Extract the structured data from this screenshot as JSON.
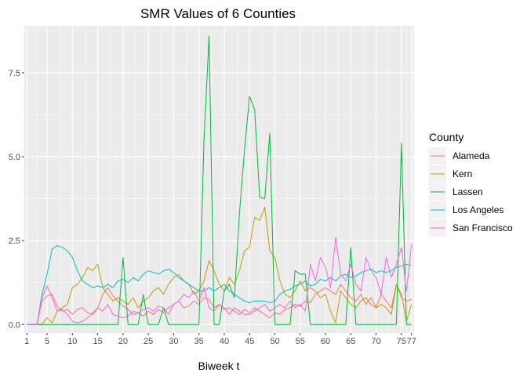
{
  "chart_data": {
    "type": "line",
    "title": "SMR Values of 6 Counties",
    "xlabel": "Biweek t",
    "ylabel": "",
    "xlim": [
      0.5,
      77.5
    ],
    "ylim": [
      -0.25,
      8.9
    ],
    "x_ticks": [
      1,
      5,
      10,
      15,
      20,
      25,
      30,
      35,
      40,
      45,
      50,
      55,
      60,
      65,
      70,
      75,
      77
    ],
    "x_tick_labels": [
      "1",
      "5",
      "10",
      "15",
      "20",
      "25",
      "30",
      "35",
      "40",
      "45",
      "50",
      "55",
      "60",
      "65",
      "70",
      "75",
      "77"
    ],
    "y_ticks": [
      0,
      2.5,
      5,
      7.5
    ],
    "y_tick_labels": [
      "0.0",
      "2.5",
      "5.0",
      "7.5"
    ],
    "grid": true,
    "legend": {
      "title": "County",
      "position": "right"
    },
    "series": [
      {
        "name": "Alameda",
        "color": "#F8766D",
        "x": [
          1,
          2,
          3,
          4,
          5,
          6,
          7,
          8,
          9,
          10,
          11,
          12,
          13,
          14,
          15,
          16,
          17,
          18,
          19,
          20,
          21,
          22,
          23,
          24,
          25,
          26,
          27,
          28,
          29,
          30,
          31,
          32,
          33,
          34,
          35,
          36,
          37,
          38,
          39,
          40,
          41,
          42,
          43,
          44,
          45,
          46,
          47,
          48,
          49,
          50,
          51,
          52,
          53,
          54,
          55,
          56,
          57,
          58,
          59,
          60,
          61,
          62,
          63,
          64,
          65,
          66,
          67,
          68,
          69,
          70,
          71,
          72,
          73,
          74,
          75,
          76,
          77
        ],
        "values": [
          0,
          0,
          0,
          0.7,
          0.85,
          0.9,
          0.55,
          0.4,
          0.45,
          0.3,
          0.45,
          0.5,
          0.35,
          0.3,
          0.5,
          0.9,
          1.1,
          0.85,
          0.7,
          0.55,
          0.45,
          0.3,
          0.35,
          0.25,
          0.4,
          0.3,
          0.45,
          0.35,
          0.5,
          0.6,
          0.7,
          0.5,
          0.55,
          0.7,
          0.6,
          0.8,
          0.75,
          0.5,
          0.6,
          0.45,
          0.5,
          0.4,
          0.3,
          0.45,
          0.35,
          0.5,
          0.4,
          0.3,
          0.2,
          0.35,
          0.3,
          0.45,
          0.5,
          0.6,
          0.55,
          0.7,
          0.65,
          0.9,
          1.0,
          1.1,
          1.0,
          0.9,
          1.2,
          1.0,
          0.8,
          0.7,
          0.9,
          0.6,
          0.8,
          0.5,
          0.9,
          0.7,
          0.5,
          1.2,
          0.8,
          0.7,
          0.75
        ]
      },
      {
        "name": "Kern",
        "color": "#B79F00",
        "x": [
          1,
          2,
          3,
          4,
          5,
          6,
          7,
          8,
          9,
          10,
          11,
          12,
          13,
          14,
          15,
          16,
          17,
          18,
          19,
          20,
          21,
          22,
          23,
          24,
          25,
          26,
          27,
          28,
          29,
          30,
          31,
          32,
          33,
          34,
          35,
          36,
          37,
          38,
          39,
          40,
          41,
          42,
          43,
          44,
          45,
          46,
          47,
          48,
          49,
          50,
          51,
          52,
          53,
          54,
          55,
          56,
          57,
          58,
          59,
          60,
          61,
          62,
          63,
          64,
          65,
          66,
          67,
          68,
          69,
          70,
          71,
          72,
          73,
          74,
          75,
          76,
          77
        ],
        "values": [
          0,
          0,
          0,
          0,
          0.2,
          0.05,
          0.4,
          0.5,
          0.6,
          1.1,
          1.2,
          1.4,
          1.7,
          1.6,
          1.8,
          1.1,
          0.9,
          0.7,
          0.8,
          0.7,
          0.6,
          0.8,
          0.5,
          0.7,
          0.8,
          1.0,
          1.1,
          0.9,
          1.2,
          1.4,
          1.5,
          1.3,
          1.2,
          0.9,
          1.0,
          1.3,
          1.9,
          1.6,
          1.2,
          1.0,
          1.4,
          1.2,
          1.6,
          2.2,
          2.3,
          3.2,
          3.1,
          3.5,
          2.2,
          2.0,
          1.3,
          0.9,
          0.8,
          1.0,
          1.3,
          1.0,
          1.1,
          1.0,
          0.8,
          0.9,
          0.4,
          0.05,
          1.0,
          0.8,
          0.6,
          0.5,
          0.7,
          0.8,
          0.6,
          0.5,
          0.6,
          0.5,
          0.3,
          1.2,
          0.9,
          0.1,
          0.6
        ]
      },
      {
        "name": "Lassen",
        "color": "#00BA38",
        "x": [
          1,
          2,
          3,
          4,
          5,
          6,
          7,
          8,
          9,
          10,
          11,
          12,
          13,
          14,
          15,
          16,
          17,
          18,
          19,
          20,
          21,
          22,
          23,
          24,
          25,
          26,
          27,
          28,
          29,
          30,
          31,
          32,
          33,
          34,
          35,
          36,
          37,
          38,
          39,
          40,
          41,
          42,
          43,
          44,
          45,
          46,
          47,
          48,
          49,
          50,
          51,
          52,
          53,
          54,
          55,
          56,
          57,
          58,
          59,
          60,
          61,
          62,
          63,
          64,
          65,
          66,
          67,
          68,
          69,
          70,
          71,
          72,
          73,
          74,
          75,
          76,
          77
        ],
        "values": [
          0,
          0,
          0,
          0,
          0,
          0,
          0,
          0,
          0,
          0,
          0,
          0,
          0,
          0,
          0,
          0,
          0,
          0,
          0,
          2.0,
          0,
          0,
          0,
          0.9,
          0,
          0,
          0,
          0.5,
          0,
          0,
          0,
          0,
          0,
          0,
          0,
          5.5,
          8.6,
          0,
          0,
          1.0,
          1.2,
          0.8,
          3.3,
          5.2,
          6.8,
          6.4,
          3.8,
          3.75,
          5.7,
          0,
          0,
          0,
          0,
          1.6,
          1.5,
          1.5,
          0,
          0,
          0,
          0,
          0,
          0,
          0,
          0,
          2.3,
          0,
          0,
          0,
          0,
          0,
          0,
          0,
          0,
          0,
          5.4,
          0,
          0
        ]
      },
      {
        "name": "Los Angeles",
        "color": "#00BFC4",
        "x": [
          1,
          2,
          3,
          4,
          5,
          6,
          7,
          8,
          9,
          10,
          11,
          12,
          13,
          14,
          15,
          16,
          17,
          18,
          19,
          20,
          21,
          22,
          23,
          24,
          25,
          26,
          27,
          28,
          29,
          30,
          31,
          32,
          33,
          34,
          35,
          36,
          37,
          38,
          39,
          40,
          41,
          42,
          43,
          44,
          45,
          46,
          47,
          48,
          49,
          50,
          51,
          52,
          53,
          54,
          55,
          56,
          57,
          58,
          59,
          60,
          61,
          62,
          63,
          64,
          65,
          66,
          67,
          68,
          69,
          70,
          71,
          72,
          73,
          74,
          75,
          76,
          77
        ],
        "values": [
          0,
          0,
          0,
          0.9,
          1.5,
          2.25,
          2.35,
          2.3,
          2.2,
          2.0,
          1.6,
          1.3,
          1.2,
          1.1,
          1.15,
          1.1,
          1.2,
          1.1,
          1.3,
          1.35,
          1.25,
          1.4,
          1.3,
          1.5,
          1.6,
          1.55,
          1.5,
          1.6,
          1.65,
          1.55,
          1.4,
          1.3,
          1.2,
          1.1,
          1.0,
          1.0,
          1.1,
          1.0,
          1.1,
          1.2,
          1.0,
          0.9,
          0.8,
          0.7,
          0.65,
          0.7,
          0.7,
          0.7,
          0.65,
          0.7,
          0.9,
          1.0,
          1.05,
          1.15,
          1.2,
          1.3,
          1.15,
          1.2,
          1.35,
          1.3,
          1.4,
          1.3,
          1.45,
          1.5,
          1.4,
          1.45,
          1.55,
          1.6,
          1.65,
          1.55,
          1.6,
          1.55,
          1.6,
          1.7,
          1.75,
          1.8,
          1.75
        ]
      },
      {
        "name": "San Francisco",
        "color": "#F564E3",
        "x": [
          1,
          2,
          3,
          4,
          5,
          6,
          7,
          8,
          9,
          10,
          11,
          12,
          13,
          14,
          15,
          16,
          17,
          18,
          19,
          20,
          21,
          22,
          23,
          24,
          25,
          26,
          27,
          28,
          29,
          30,
          31,
          32,
          33,
          34,
          35,
          36,
          37,
          38,
          39,
          40,
          41,
          42,
          43,
          44,
          45,
          46,
          47,
          48,
          49,
          50,
          51,
          52,
          53,
          54,
          55,
          56,
          57,
          58,
          59,
          60,
          61,
          62,
          63,
          64,
          65,
          66,
          67,
          68,
          69,
          70,
          71,
          72,
          73,
          74,
          75,
          76,
          77
        ],
        "values": [
          0,
          0,
          0,
          0.8,
          1.15,
          0.8,
          0.4,
          0.45,
          0.3,
          0.1,
          0.05,
          0.1,
          0.2,
          0.35,
          0.5,
          0.4,
          0.6,
          0.3,
          0.25,
          0.2,
          0.25,
          0.4,
          0.35,
          0.45,
          0.5,
          0.4,
          0.55,
          0.5,
          0.3,
          0.6,
          0.7,
          0.9,
          0.8,
          1.0,
          0.7,
          1.1,
          0.5,
          0.4,
          0.6,
          0.5,
          0.3,
          0.5,
          0.4,
          0.3,
          0.3,
          0.4,
          0.5,
          0.6,
          0.4,
          0.5,
          0.6,
          0.5,
          0.7,
          0.5,
          0.6,
          0.4,
          1.8,
          1.3,
          2.0,
          1.7,
          1.1,
          2.6,
          1.5,
          1.3,
          1.8,
          1.2,
          1.0,
          2.0,
          1.6,
          1.4,
          0.9,
          2.0,
          1.4,
          1.8,
          2.3,
          1.0,
          2.4
        ]
      }
    ]
  }
}
